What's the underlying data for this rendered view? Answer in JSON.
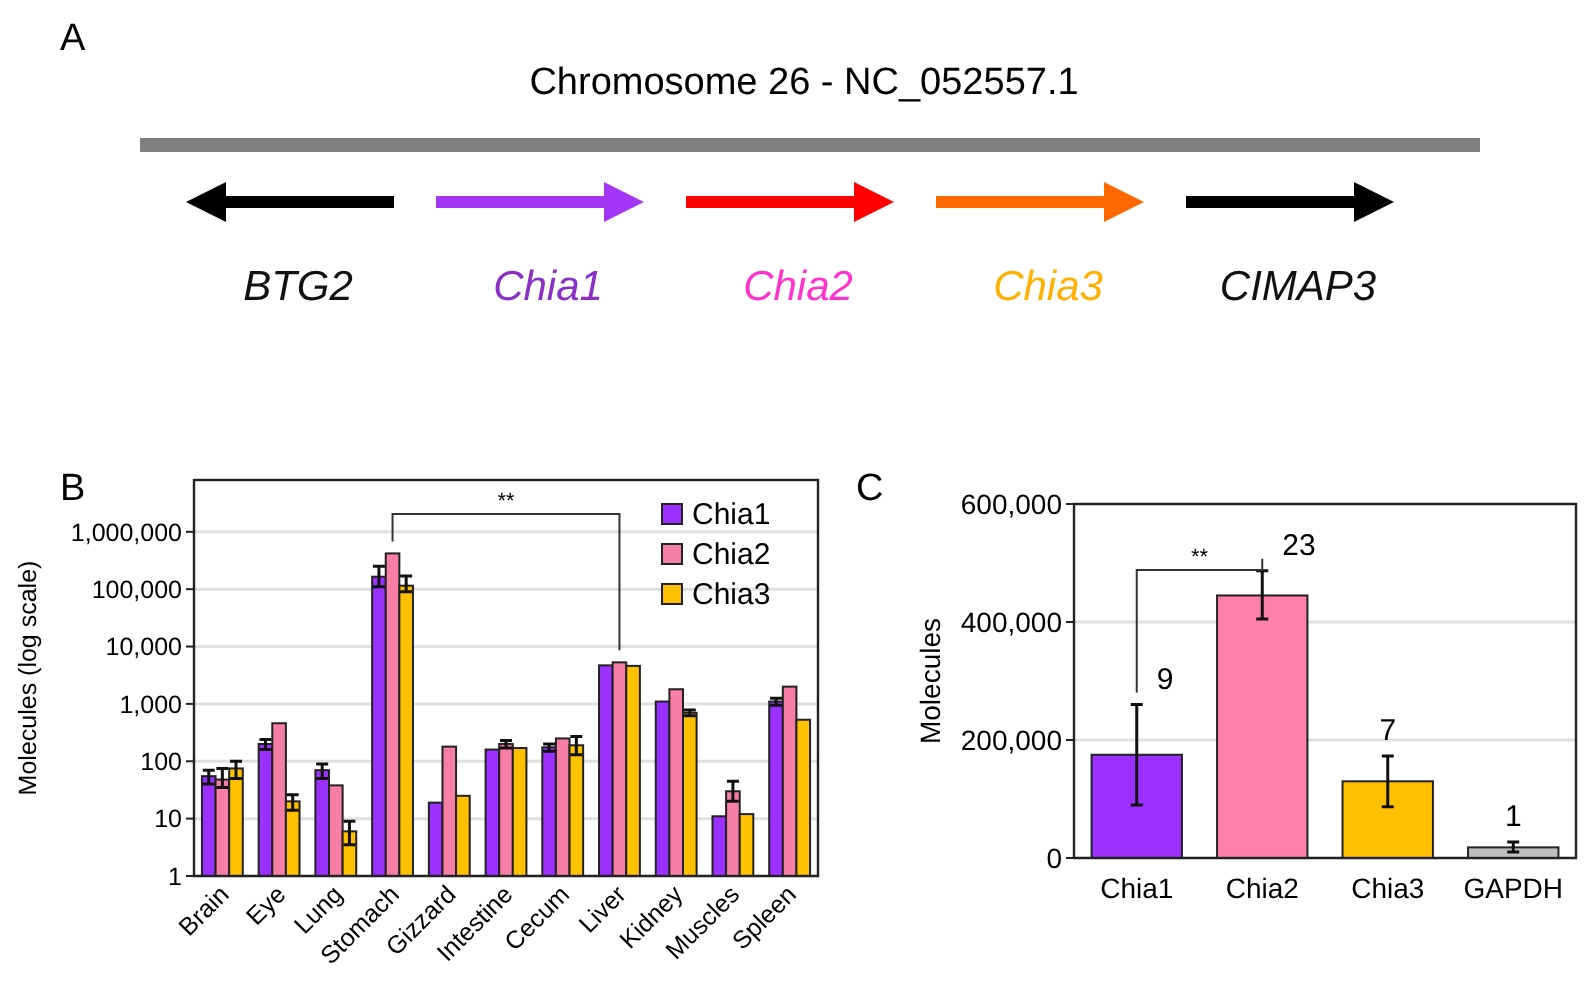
{
  "chart_data": [
    {
      "type": "other",
      "title": "Chromosome 26 - NC_052557.1",
      "annotations": [
        "A",
        "BTG2",
        "Chia1",
        "Chia2",
        "Chia3",
        "CIMAP3"
      ]
    },
    {
      "type": "bar",
      "log": true,
      "ylabel": "Molecules (log scale)",
      "categories": [
        "Brain",
        "Eye",
        "Lung",
        "Stomach",
        "Gizzard",
        "Intestine",
        "Cecum",
        "Liver",
        "Kidney",
        "Muscles",
        "Spleen"
      ],
      "series": [
        {
          "name": "Chia1",
          "color": "#9b30ff",
          "values": [
            55,
            200,
            70,
            165000,
            19,
            160,
            175,
            4700,
            1100,
            11,
            1100
          ],
          "errors": [
            15,
            40,
            20,
            [
              110000,
              250000
            ],
            null,
            null,
            25,
            null,
            null,
            null,
            150
          ]
        },
        {
          "name": "Chia2",
          "color": "#f77fa6",
          "values": [
            48,
            460,
            38,
            420000,
            180,
            200,
            250,
            5300,
            1800,
            30,
            2000
          ],
          "errors": [
            [
              35,
              75
            ],
            null,
            null,
            null,
            null,
            30,
            null,
            null,
            null,
            [
              20,
              45
            ],
            null
          ]
        },
        {
          "name": "Chia3",
          "color": "#ffc000",
          "values": [
            75,
            20,
            6,
            115000,
            25,
            170,
            190,
            4600,
            700,
            12,
            530
          ],
          "errors": [
            25,
            6,
            [
              3.5,
              9
            ],
            [
              90000,
              170000
            ],
            null,
            null,
            [
              130,
              270
            ],
            null,
            80,
            null,
            null
          ]
        }
      ],
      "ylim": [
        1,
        8000000
      ],
      "yticks": [
        1,
        10,
        100,
        {
          "value": 1000,
          "label": "1,000"
        },
        {
          "value": 10000,
          "label": "10,000"
        },
        {
          "value": 100000,
          "label": "100,000"
        },
        {
          "value": 1000000,
          "label": "1,000,000"
        }
      ],
      "grid": "y",
      "legend": "top right",
      "annotations": [
        "B",
        "**"
      ]
    },
    {
      "type": "bar",
      "ylabel": "Molecules",
      "categories": [
        "Chia1",
        "Chia2",
        "Chia3",
        "GAPDH"
      ],
      "series": [
        {
          "colors": [
            "#9b30ff",
            "#ff80a8",
            "#ffc000",
            "#bfbfbf"
          ],
          "values": [
            175000,
            445000,
            130000,
            18000
          ],
          "errors": [
            [
              90000,
              260000
            ],
            [
              405000,
              487000
            ],
            [
              87000,
              173000
            ],
            [
              10000,
              27000
            ]
          ]
        }
      ],
      "ylim": [
        0,
        600000
      ],
      "yticks": [
        0,
        {
          "value": 200000,
          "label": "200,000"
        },
        {
          "value": 400000,
          "label": "400,000"
        },
        {
          "value": 600000,
          "label": "600,000"
        }
      ],
      "grid": "y",
      "annotations": [
        "C",
        "**",
        {
          "text": "9",
          "x": "Chia1",
          "y": 260000
        },
        {
          "text": "23",
          "x": "Chia2",
          "y": 487000
        },
        {
          "text": "7",
          "x": "Chia3",
          "y": 173000
        },
        {
          "text": "1",
          "x": "GAPDH",
          "y": 27000
        }
      ]
    }
  ]
}
